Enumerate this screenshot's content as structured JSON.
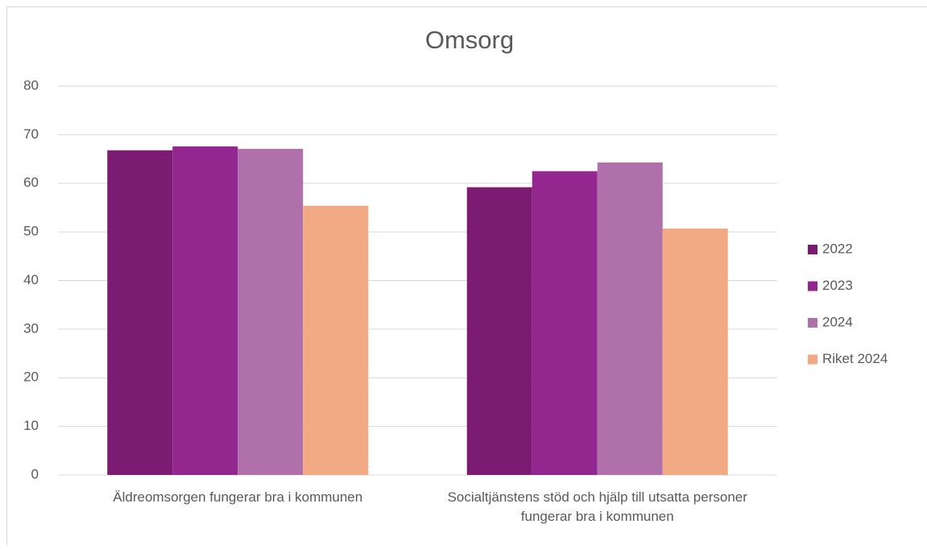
{
  "chart_data": {
    "type": "bar",
    "title": "Omsorg",
    "categories": [
      "Äldreomsorgen fungerar bra i kommunen",
      "Socialtjänstens stöd och hjälp till utsatta personer fungerar bra i kommunen"
    ],
    "series": [
      {
        "name": "2022",
        "color": "#7b1c72",
        "values": [
          66.8,
          59.2
        ]
      },
      {
        "name": "2023",
        "color": "#93278f",
        "values": [
          67.6,
          62.5
        ]
      },
      {
        "name": "2024",
        "color": "#b070aa",
        "values": [
          67.1,
          64.3
        ]
      },
      {
        "name": "Riket 2024",
        "color": "#f2aa84",
        "values": [
          55.4,
          50.7
        ]
      }
    ],
    "ylim": [
      0,
      80
    ],
    "yticks": [
      0,
      10,
      20,
      30,
      40,
      50,
      60,
      70,
      80
    ],
    "grid": true,
    "legend": "right"
  }
}
